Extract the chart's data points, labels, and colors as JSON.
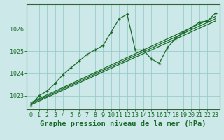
{
  "background_color": "#cce8e8",
  "plot_bg_color": "#cce8e8",
  "grid_color": "#99cccc",
  "line_color": "#1a6b2a",
  "border_color": "#336633",
  "title": "Graphe pression niveau de la mer (hPa)",
  "xlim": [
    -0.5,
    23.5
  ],
  "ylim": [
    1022.4,
    1027.1
  ],
  "yticks": [
    1023,
    1024,
    1025,
    1026
  ],
  "xticks": [
    0,
    1,
    2,
    3,
    4,
    5,
    6,
    7,
    8,
    9,
    10,
    11,
    12,
    13,
    14,
    15,
    16,
    17,
    18,
    19,
    20,
    21,
    22,
    23
  ],
  "series1_x": [
    0,
    1,
    2,
    3,
    4,
    5,
    6,
    7,
    8,
    9,
    10,
    11,
    12,
    13,
    14,
    15,
    16,
    17,
    18,
    19,
    20,
    21,
    22,
    23
  ],
  "series1_y": [
    1022.55,
    1023.0,
    1023.2,
    1023.55,
    1023.95,
    1024.25,
    1024.55,
    1024.85,
    1025.05,
    1025.25,
    1025.85,
    1026.45,
    1026.65,
    1025.05,
    1025.05,
    1024.65,
    1024.45,
    1025.15,
    1025.55,
    1025.85,
    1026.05,
    1026.3,
    1026.35,
    1026.7
  ],
  "trend1_x": [
    0,
    23
  ],
  "trend1_y": [
    1022.7,
    1026.55
  ],
  "trend2_x": [
    0,
    23
  ],
  "trend2_y": [
    1022.65,
    1026.45
  ],
  "trend3_x": [
    0,
    23
  ],
  "trend3_y": [
    1022.6,
    1026.35
  ],
  "title_fontsize": 7.5,
  "tick_fontsize": 6,
  "figsize": [
    3.2,
    2.0
  ],
  "dpi": 100
}
